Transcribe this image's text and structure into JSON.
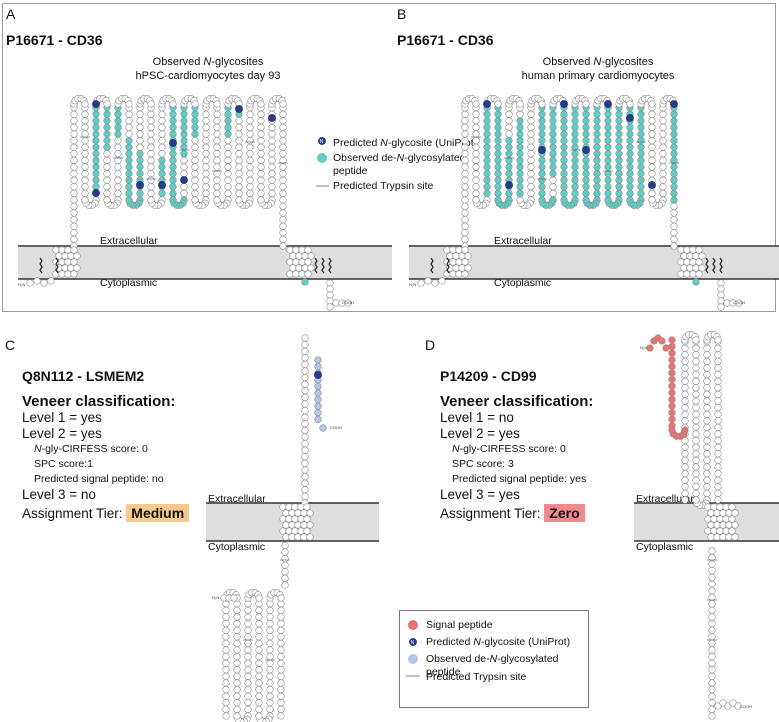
{
  "panels": {
    "A": {
      "letter": "A",
      "title": "P16671 - CD36",
      "subtitle_prefix": "Observed ",
      "subtitle_italic": "N",
      "subtitle_suffix": "-glycosites",
      "subtitle_line2": "hPSC-cardiomyocytes day 93",
      "extracellular": "Extracellular",
      "cytoplasmic": "Cytoplasmic",
      "nterm": "H₂N",
      "cterm": "COOH"
    },
    "B": {
      "letter": "B",
      "title": "P16671 - CD36",
      "subtitle_prefix": "Observed ",
      "subtitle_italic": "N",
      "subtitle_suffix": "-glycosites",
      "subtitle_line2": "human primary cardiomyocytes",
      "extracellular": "Extracellular",
      "cytoplasmic": "Cytoplasmic",
      "nterm": "H₂N",
      "cterm": "COOH"
    },
    "C": {
      "letter": "C",
      "title": "Q8N112 - LSMEM2",
      "veneer_heading": "Veneer classification:",
      "level1": "Level 1 = yes",
      "level2": "Level 2 = yes",
      "cirfess_italic": "N",
      "cirfess_rest": "-gly-CIRFESS score: 0",
      "spc": "SPC score:1",
      "signal": "Predicted signal peptide: no",
      "level3": "Level 3 = no",
      "tier_label": "Assignment Tier: ",
      "tier_value": "Medium",
      "tier_color": "#f7c98c",
      "extracellular": "Extracellular",
      "cytoplasmic": "Cytoplasmic",
      "nterm": "H₂N",
      "cterm": "COOH"
    },
    "D": {
      "letter": "D",
      "title": "P14209 - CD99",
      "veneer_heading": "Veneer classification:",
      "level1": "Level 1 = no",
      "level2": "Level 2 = yes",
      "cirfess_italic": "N",
      "cirfess_rest": "-gly-CIRFESS score: 0",
      "spc": "SPC score: 3",
      "signal": "Predicted signal peptide: yes",
      "level3": "Level 3 = yes",
      "tier_label": "Assignment Tier: ",
      "tier_value": "Zero",
      "tier_color": "#f08a8f",
      "extracellular": "Extracellular",
      "cytoplasmic": "Cytoplasmic",
      "nterm": "H₂N",
      "cterm": "COOH"
    }
  },
  "legend_top": {
    "predicted_prefix": "Predicted ",
    "predicted_italic": "N",
    "predicted_suffix": "-glycosite (UniProt)",
    "observed_prefix": "Observed de-",
    "observed_italic": "N",
    "observed_suffix": "-glycosylated",
    "observed_line2": "peptide",
    "trypsin": "Predicted Trypsin site",
    "glyph": "N"
  },
  "legend_bottom": {
    "signal": "Signal peptide",
    "predicted_prefix": "Predicted ",
    "predicted_italic": "N",
    "predicted_suffix": "-glycosite (UniProt)",
    "observed_prefix": "Observed de-",
    "observed_italic": "N",
    "observed_suffix": "-glycosylated peptide",
    "trypsin": "Predicted Trypsin site",
    "glyph": "N"
  },
  "colors": {
    "glycosite": "#283a8c",
    "observed_teal": "#5fcdc4",
    "observed_light": "#b4c6e6",
    "signal": "#ec7372",
    "membrane": "#dedede",
    "residue_stroke": "#8a8a8a"
  }
}
